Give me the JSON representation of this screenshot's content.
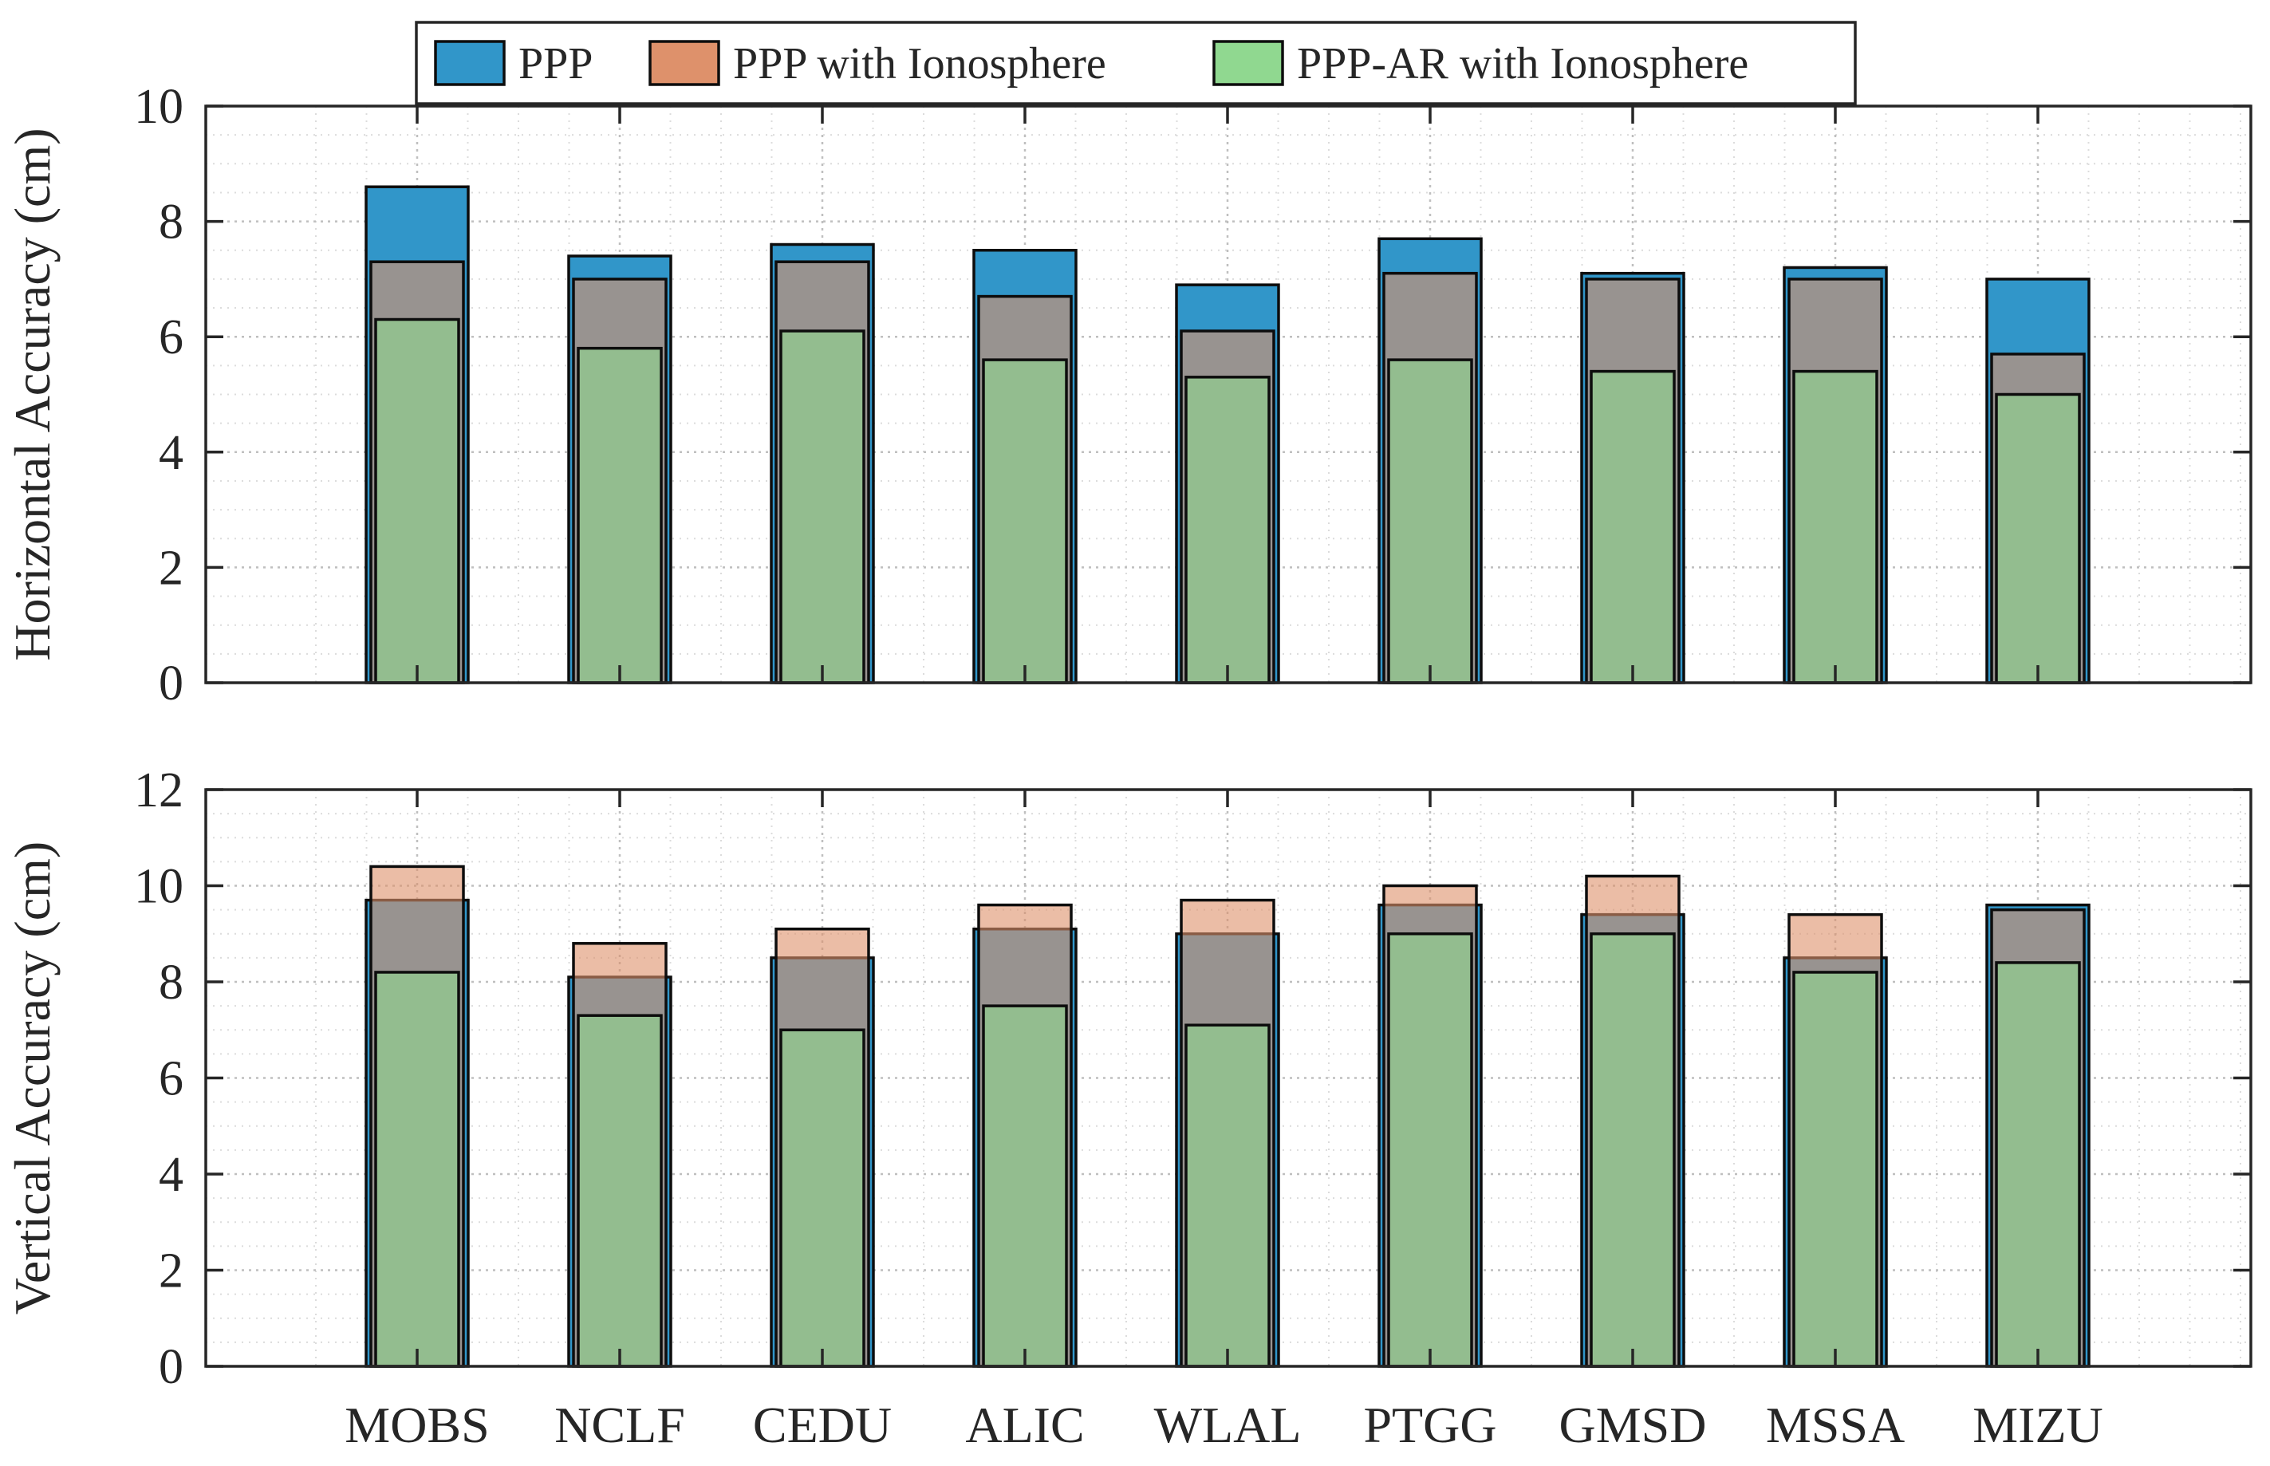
{
  "colors": {
    "ppp": "#3196c9",
    "ppp_iono": "#de916b",
    "ppp_ar_iono": "#90d890",
    "outline": "#0d0d0d",
    "grid": "#bfbfbf"
  },
  "legend": {
    "items": [
      {
        "key": "ppp",
        "label": "PPP"
      },
      {
        "key": "ppp_iono",
        "label": "PPP with Ionosphere"
      },
      {
        "key": "ppp_ar_iono",
        "label": "PPP-AR with Ionosphere"
      }
    ],
    "placement": "top-center"
  },
  "chart_data": [
    {
      "type": "bar",
      "ylabel": "Horizontal Accuracy (cm)",
      "ylim": [
        0,
        10
      ],
      "yticks": [
        0,
        2,
        4,
        6,
        8,
        10
      ],
      "grid": true,
      "categories": [
        "MOBS",
        "NCLF",
        "CEDU",
        "ALIC",
        "WLAL",
        "PTGG",
        "GMSD",
        "MSSA",
        "MIZU"
      ],
      "series": [
        {
          "name": "PPP",
          "values": [
            8.6,
            7.4,
            7.6,
            7.5,
            6.9,
            7.7,
            7.1,
            7.2,
            7.0
          ]
        },
        {
          "name": "PPP with Ionosphere",
          "values": [
            7.3,
            7.0,
            7.3,
            6.7,
            6.1,
            7.1,
            7.0,
            7.0,
            5.7
          ]
        },
        {
          "name": "PPP-AR with Ionosphere",
          "values": [
            6.3,
            5.8,
            6.1,
            5.6,
            5.3,
            5.6,
            5.4,
            5.4,
            5.0
          ]
        }
      ]
    },
    {
      "type": "bar",
      "ylabel": "Vertical Accuracy (cm)",
      "ylim": [
        0,
        12
      ],
      "yticks": [
        0,
        2,
        4,
        6,
        8,
        10,
        12
      ],
      "grid": true,
      "categories": [
        "MOBS",
        "NCLF",
        "CEDU",
        "ALIC",
        "WLAL",
        "PTGG",
        "GMSD",
        "MSSA",
        "MIZU"
      ],
      "series": [
        {
          "name": "PPP",
          "values": [
            9.7,
            8.1,
            8.5,
            9.1,
            9.0,
            9.6,
            9.4,
            8.5,
            9.6
          ]
        },
        {
          "name": "PPP with Ionosphere",
          "values": [
            10.4,
            8.8,
            9.1,
            9.6,
            9.7,
            10.0,
            10.2,
            9.4,
            9.5
          ]
        },
        {
          "name": "PPP-AR with Ionosphere",
          "values": [
            8.2,
            7.3,
            7.0,
            7.5,
            7.1,
            9.0,
            9.0,
            8.2,
            8.4
          ]
        }
      ]
    }
  ]
}
